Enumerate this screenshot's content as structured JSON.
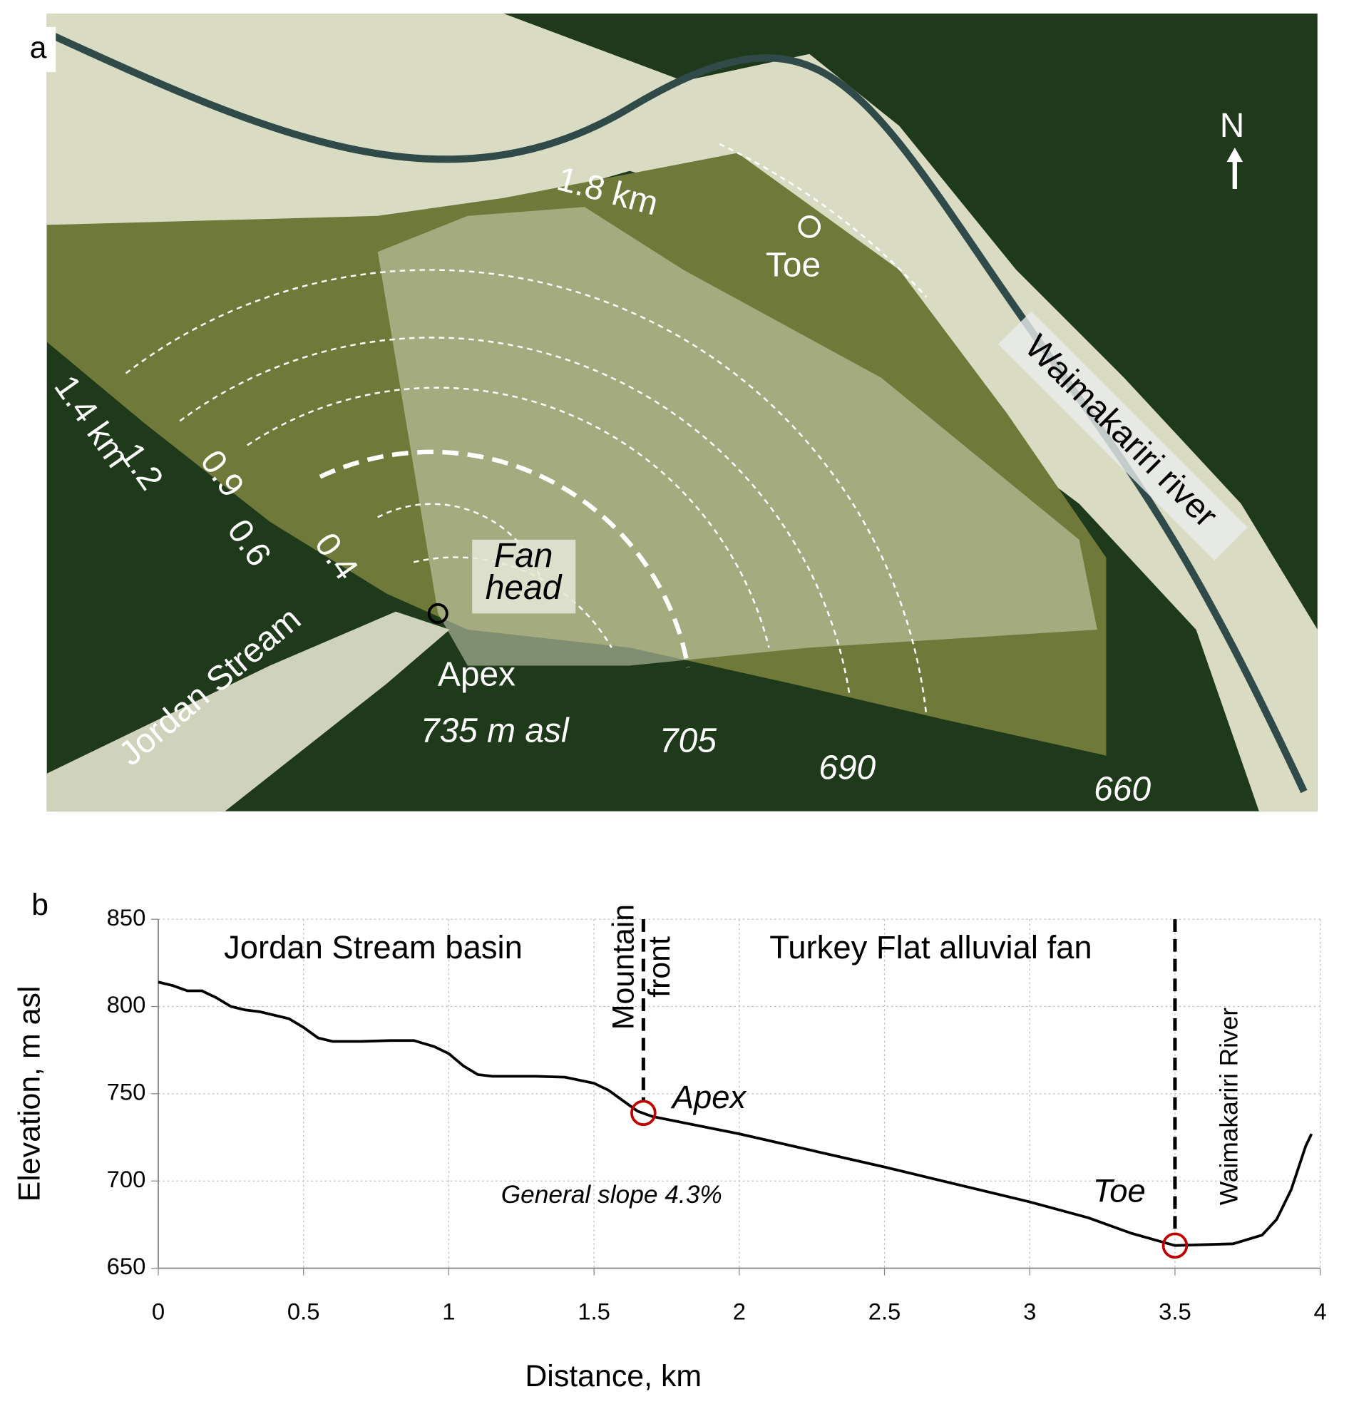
{
  "panel_a": {
    "panel_label": "a",
    "north": "N",
    "distance_labels": [
      "1.8 km",
      "1.4 km",
      "1.2",
      "0.9",
      "0.6",
      "0.4"
    ],
    "fan_head": [
      "Fan",
      "head"
    ],
    "apex": "Apex",
    "apex_elevation": "735 m asl",
    "toe": "Toe",
    "elevation_labels": [
      "705",
      "690",
      "660"
    ],
    "stream": "Jordan Stream",
    "river": "Waimakariri river"
  },
  "chart_data": {
    "type": "line",
    "panel_label": "b",
    "xlabel": "Distance, km",
    "ylabel": "Elevation, m asl",
    "xlim": [
      0,
      4
    ],
    "xticks": [
      0,
      0.5,
      1,
      1.5,
      2,
      2.5,
      3,
      3.5,
      4
    ],
    "ylim": [
      650,
      850
    ],
    "yticks": [
      650,
      700,
      750,
      800,
      850
    ],
    "grid": true,
    "x": [
      0,
      0.05,
      0.1,
      0.15,
      0.2,
      0.25,
      0.3,
      0.35,
      0.4,
      0.45,
      0.5,
      0.55,
      0.6,
      0.7,
      0.8,
      0.88,
      0.95,
      1.0,
      1.05,
      1.1,
      1.15,
      1.3,
      1.4,
      1.5,
      1.55,
      1.6,
      1.65,
      1.7,
      2.0,
      2.5,
      3.0,
      3.2,
      3.35,
      3.5,
      3.7,
      3.8,
      3.85,
      3.9,
      3.95,
      3.97
    ],
    "series": [
      {
        "color": "#000000",
        "values": [
          814,
          812,
          809,
          809,
          805,
          800,
          798,
          797,
          795,
          793,
          788,
          782,
          780,
          780,
          780.5,
          780.5,
          777,
          773,
          766,
          761,
          760,
          760,
          759.5,
          756,
          752,
          746,
          740,
          737,
          727,
          708,
          688,
          679,
          670,
          663,
          664,
          669,
          678,
          695,
          720,
          727
        ]
      }
    ],
    "region_labels": [
      "Jordan Stream basin",
      "Turkey Flat alluvial fan"
    ],
    "markers": [
      {
        "label": "Apex",
        "x": 1.67,
        "y": 739,
        "color": "#c00000"
      },
      {
        "label": "Toe",
        "x": 3.5,
        "y": 663,
        "color": "#c00000"
      }
    ],
    "vlines": [
      {
        "x": 1.67,
        "label_lines": [
          "Mountain",
          "front"
        ]
      },
      {
        "x": 3.5,
        "label_lines": [
          "Waimakariri River"
        ]
      }
    ],
    "slope_label": "General slope 4.3%"
  }
}
